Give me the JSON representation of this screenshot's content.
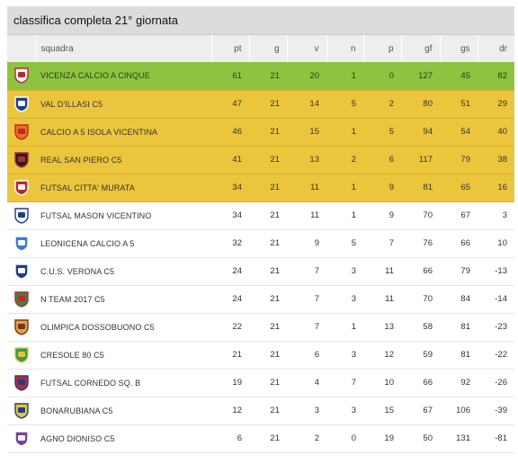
{
  "title": "classifica completa 21° giornata",
  "headers": {
    "squadra": "squadra",
    "pt": "pt",
    "g": "g",
    "v": "v",
    "n": "n",
    "p": "p",
    "gf": "gf",
    "gs": "gs",
    "dr": "dr"
  },
  "colors": {
    "lead": "#8dc33f",
    "top": "#ebc63c"
  },
  "rows": [
    {
      "team": "VICENZA CALCIO A CINQUE",
      "pt": "61",
      "g": "21",
      "v": "20",
      "n": "1",
      "p": "0",
      "gf": "127",
      "gs": "45",
      "dr": "82",
      "highlight": "lead",
      "crest": "vicenza-crest-icon",
      "c1": "#ffffff",
      "c2": "#c0262d"
    },
    {
      "team": "VAL D'ILLASI C5",
      "pt": "47",
      "g": "21",
      "v": "14",
      "n": "5",
      "p": "2",
      "gf": "80",
      "gs": "51",
      "dr": "29",
      "highlight": "top",
      "crest": "val-dillasi-crest-icon",
      "c1": "#1d3f8a",
      "c2": "#ffffff"
    },
    {
      "team": "CALCIO A 5 ISOLA VICENTINA",
      "pt": "46",
      "g": "21",
      "v": "15",
      "n": "1",
      "p": "5",
      "gf": "94",
      "gs": "54",
      "dr": "40",
      "highlight": "top",
      "crest": "isola-vicentina-crest-icon",
      "c1": "#e8731a",
      "c2": "#c0262d"
    },
    {
      "team": "REAL SAN PIERO C5",
      "pt": "41",
      "g": "21",
      "v": "13",
      "n": "2",
      "p": "6",
      "gf": "117",
      "gs": "79",
      "dr": "38",
      "highlight": "top",
      "crest": "real-san-piero-crest-icon",
      "c1": "#222222",
      "c2": "#c0262d"
    },
    {
      "team": "FUTSAL CITTA' MURATA",
      "pt": "34",
      "g": "21",
      "v": "11",
      "n": "1",
      "p": "9",
      "gf": "81",
      "gs": "65",
      "dr": "16",
      "highlight": "top",
      "crest": "futsal-citta-murata-crest-icon",
      "c1": "#c0262d",
      "c2": "#ffffff"
    },
    {
      "team": "FUTSAL MASON VICENTINO",
      "pt": "34",
      "g": "21",
      "v": "11",
      "n": "1",
      "p": "9",
      "gf": "70",
      "gs": "67",
      "dr": "3",
      "highlight": "",
      "crest": "futsal-mason-crest-icon",
      "c1": "#ffffff",
      "c2": "#1d3f8a"
    },
    {
      "team": "LEONICENA CALCIO A 5",
      "pt": "32",
      "g": "21",
      "v": "9",
      "n": "5",
      "p": "7",
      "gf": "76",
      "gs": "66",
      "dr": "10",
      "highlight": "",
      "crest": "leonicena-crest-icon",
      "c1": "#3a7fc1",
      "c2": "#ffffff"
    },
    {
      "team": "C.U.S. VERONA C5",
      "pt": "24",
      "g": "21",
      "v": "7",
      "n": "3",
      "p": "11",
      "gf": "66",
      "gs": "79",
      "dr": "-13",
      "highlight": "",
      "crest": "cus-verona-crest-icon",
      "c1": "#1d3f8a",
      "c2": "#ffffff"
    },
    {
      "team": "N TEAM 2017 C5",
      "pt": "24",
      "g": "21",
      "v": "7",
      "n": "3",
      "p": "11",
      "gf": "70",
      "gs": "84",
      "dr": "-14",
      "highlight": "",
      "crest": "n-team-crest-icon",
      "c1": "#2e8b3a",
      "c2": "#c0262d"
    },
    {
      "team": "OLIMPICA DOSSOBUONO C5",
      "pt": "22",
      "g": "21",
      "v": "7",
      "n": "1",
      "p": "13",
      "gf": "58",
      "gs": "81",
      "dr": "-23",
      "highlight": "",
      "crest": "olimpica-dossobuono-crest-icon",
      "c1": "#e8a13a",
      "c2": "#6b3a1f"
    },
    {
      "team": "CRESOLE 80 C5",
      "pt": "21",
      "g": "21",
      "v": "6",
      "n": "3",
      "p": "12",
      "gf": "59",
      "gs": "81",
      "dr": "-22",
      "highlight": "",
      "crest": "cresole-crest-icon",
      "c1": "#2e9e5a",
      "c2": "#e8c13a"
    },
    {
      "team": "FUTSAL CORNEDO Sq. B",
      "pt": "19",
      "g": "21",
      "v": "4",
      "n": "7",
      "p": "10",
      "gf": "66",
      "gs": "92",
      "dr": "-26",
      "highlight": "",
      "crest": "futsal-cornedo-crest-icon",
      "c1": "#c0262d",
      "c2": "#1d3f8a"
    },
    {
      "team": "BONARUBIANA C5",
      "pt": "12",
      "g": "21",
      "v": "3",
      "n": "3",
      "p": "15",
      "gf": "67",
      "gs": "106",
      "dr": "-39",
      "highlight": "",
      "crest": "bonarubiana-crest-icon",
      "c1": "#e8c13a",
      "c2": "#1d3f8a"
    },
    {
      "team": "AGNO DIONISO C5",
      "pt": "6",
      "g": "21",
      "v": "2",
      "n": "0",
      "p": "19",
      "gf": "50",
      "gs": "131",
      "dr": "-81",
      "highlight": "",
      "crest": "agno-dioniso-crest-icon",
      "c1": "#7a3f9c",
      "c2": "#ffffff"
    }
  ]
}
